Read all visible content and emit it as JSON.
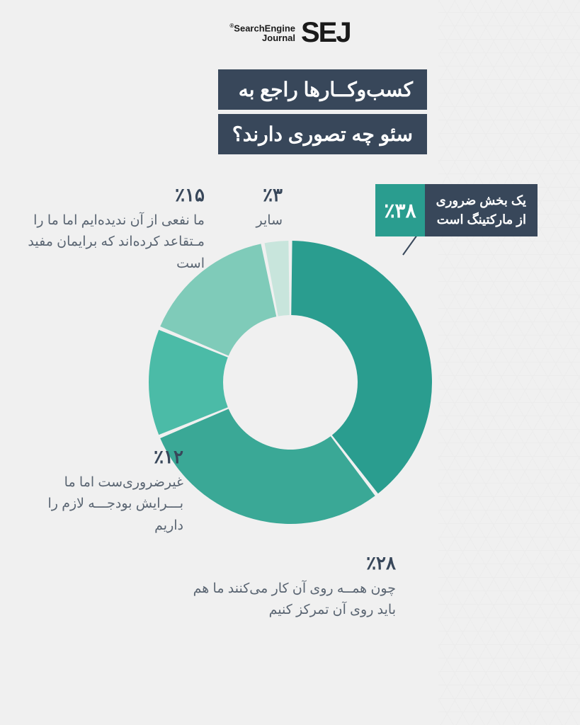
{
  "logo": {
    "bold": "SEJ",
    "line1": "SearchEngine",
    "line2": "Journal",
    "reg": "®"
  },
  "title": {
    "line1": "کسب‌وکــارها راجع به",
    "line2": "سئو چه تصوری دارند؟"
  },
  "chart": {
    "type": "donut",
    "outer_radius": 200,
    "inner_radius": 95,
    "background": "#f0f0f0",
    "slices": [
      {
        "value": 38,
        "color": "#2a9d8f",
        "pct_label": "٪۳۸",
        "text": "یک بخش ضروری\nاز مارکتینگ است",
        "featured": true
      },
      {
        "value": 28,
        "color": "#3aa896",
        "pct_label": "٪۲۸",
        "text": "چون همــه روی آن کار می‌کنند ما هم باید روی آن تمرکز کنیم"
      },
      {
        "value": 12,
        "color": "#4bbba7",
        "pct_label": "٪۱۲",
        "text": "غیرضروری‌ست اما ما بـــرایش بودجـــه لازم را داریم"
      },
      {
        "value": 15,
        "color": "#7fcbb9",
        "pct_label": "٪۱۵",
        "text": "ما نفعی از آن ندیده‌ایم اما ما را مـتقاعد کرده‌اند که برایمان مفید است"
      },
      {
        "value": 3,
        "color": "#c8e5dc",
        "pct_label": "٪۳",
        "text": "سایر"
      }
    ],
    "gap_color": "#f0f0f0",
    "gap_deg": 1.5,
    "start_angle_deg": -90
  },
  "colors": {
    "page_bg": "#f0f0f0",
    "title_bg": "#38475a",
    "title_fg": "#ffffff",
    "label_fg": "#38475a",
    "label_text_fg": "#5a6572",
    "featured_pct_bg": "#2a9d8f"
  },
  "typography": {
    "title_fontsize": 28,
    "pct_fontsize": 26,
    "label_fontsize": 19,
    "featured_pct_fontsize": 28,
    "featured_text_fontsize": 18
  }
}
